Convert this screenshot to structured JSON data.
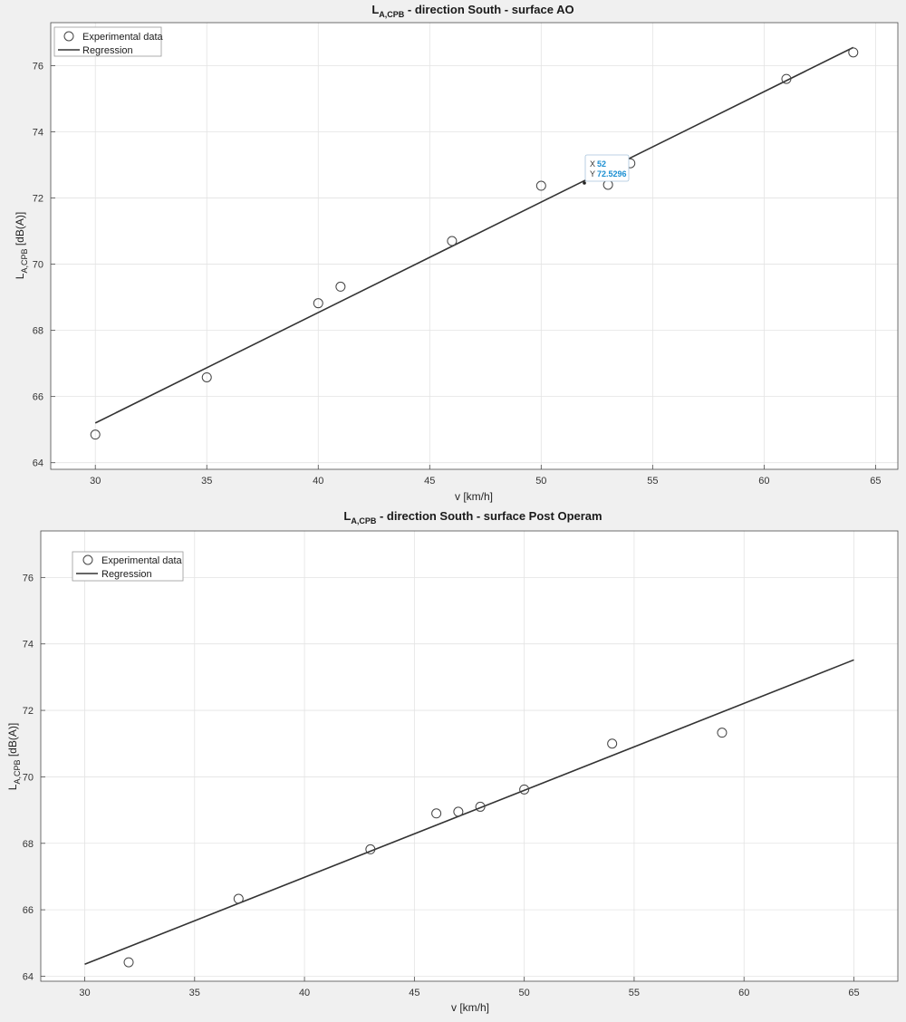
{
  "chart_data": [
    {
      "type": "scatter",
      "title": "L",
      "title_sub": "A,CPB",
      "title_rest": " - direction South - surface AO",
      "xlabel": "v [km/h]",
      "ylabel": "L",
      "ylabel_sub": "A,CPB",
      "ylabel_rest": " [dB(A)]",
      "xlim": [
        28,
        66
      ],
      "ylim": [
        63.8,
        77.3
      ],
      "xticks": [
        30,
        35,
        40,
        45,
        50,
        55,
        60,
        65
      ],
      "yticks": [
        64,
        66,
        68,
        70,
        72,
        74,
        76
      ],
      "grid": true,
      "legend_position": "top-left",
      "series": [
        {
          "name": "Experimental data",
          "kind": "scatter",
          "marker": "open-circle",
          "x": [
            30,
            35,
            40,
            41,
            46,
            50,
            53,
            54,
            61,
            64
          ],
          "y": [
            64.85,
            66.58,
            68.82,
            69.32,
            70.7,
            72.37,
            72.4,
            73.05,
            75.6,
            76.4
          ]
        },
        {
          "name": "Regression",
          "kind": "line",
          "x": [
            30,
            64
          ],
          "y": [
            65.2,
            76.55
          ]
        }
      ],
      "datatip": {
        "x_label": "X",
        "x_value": "52",
        "y_label": "Y",
        "y_value": "72.5296",
        "x": 52,
        "y": 72.5296
      }
    },
    {
      "type": "scatter",
      "title": "L",
      "title_sub": "A,CPB",
      "title_rest": " - direction South - surface Post Operam",
      "xlabel": "v [km/h]",
      "ylabel": "L",
      "ylabel_sub": "A,CPB",
      "ylabel_rest": " [dB(A)]",
      "xlim": [
        28,
        67
      ],
      "ylim": [
        63.85,
        77.4
      ],
      "xticks": [
        30,
        35,
        40,
        45,
        50,
        55,
        60,
        65
      ],
      "yticks": [
        64,
        66,
        68,
        70,
        72,
        74,
        76
      ],
      "grid": true,
      "legend_position": "top-left",
      "series": [
        {
          "name": "Experimental data",
          "kind": "scatter",
          "marker": "open-circle",
          "x": [
            32,
            37,
            43,
            46,
            47,
            48,
            50,
            54,
            59
          ],
          "y": [
            64.42,
            66.33,
            67.82,
            68.9,
            68.95,
            69.1,
            69.62,
            71.0,
            71.33
          ]
        },
        {
          "name": "Regression",
          "kind": "line",
          "x": [
            30,
            65
          ],
          "y": [
            64.36,
            73.52
          ]
        }
      ]
    }
  ]
}
